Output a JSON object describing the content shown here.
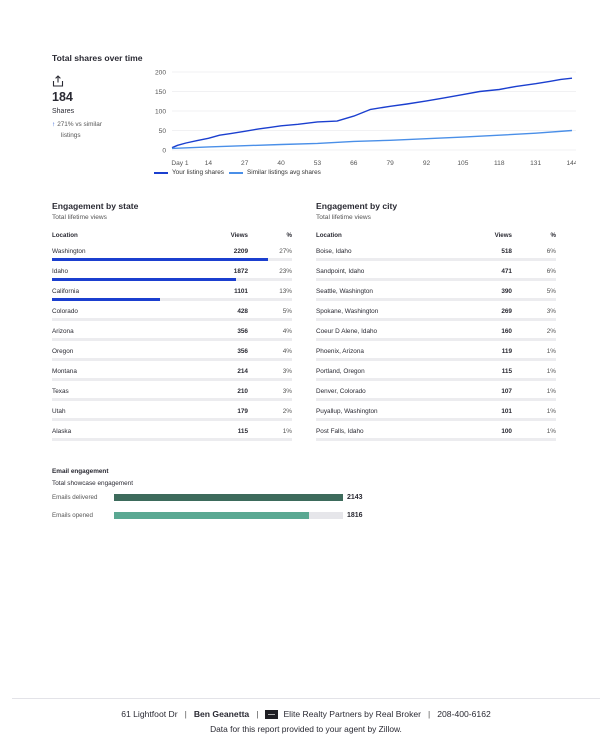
{
  "shares": {
    "title": "Total shares over time",
    "count": "184",
    "count_label": "Shares",
    "compare_line1": "271% vs similar",
    "compare_line2": "listings",
    "icon": "share-icon"
  },
  "chart_data": {
    "type": "line",
    "x_ticks": [
      "Day 1",
      "14",
      "27",
      "40",
      "53",
      "66",
      "79",
      "92",
      "105",
      "118",
      "131",
      "144"
    ],
    "y_ticks": [
      "0",
      "50",
      "100",
      "150",
      "200"
    ],
    "ylim": [
      0,
      200
    ],
    "xlim": [
      1,
      144
    ],
    "series": [
      {
        "name": "Your listing shares",
        "color": "#1b3fcf",
        "x": [
          1,
          3,
          6,
          10,
          14,
          18,
          22,
          27,
          32,
          36,
          40,
          46,
          53,
          60,
          66,
          72,
          79,
          85,
          92,
          98,
          105,
          111,
          118,
          124,
          131,
          136,
          140,
          144
        ],
        "values": [
          6,
          12,
          18,
          24,
          30,
          38,
          42,
          48,
          54,
          58,
          62,
          66,
          72,
          74,
          87,
          104,
          112,
          118,
          126,
          133,
          142,
          150,
          155,
          163,
          170,
          176,
          181,
          184
        ]
      },
      {
        "name": "Similar listings avg shares",
        "color": "#4a8fe8",
        "x": [
          1,
          14,
          27,
          40,
          53,
          66,
          79,
          92,
          105,
          118,
          131,
          144
        ],
        "values": [
          4,
          8,
          11,
          14,
          17,
          22,
          25,
          29,
          33,
          38,
          43,
          50
        ]
      }
    ]
  },
  "state": {
    "title": "Engagement by state",
    "subtitle": "Total lifetime views",
    "headers": {
      "location": "Location",
      "views": "Views",
      "pct": "%"
    },
    "rows": [
      {
        "location": "Washington",
        "views": "2209",
        "pct": "27%",
        "fill": 1.0
      },
      {
        "location": "Idaho",
        "views": "1872",
        "pct": "23%",
        "fill": 0.85
      },
      {
        "location": "California",
        "views": "1101",
        "pct": "13%",
        "fill": 0.5
      },
      {
        "location": "Colorado",
        "views": "428",
        "pct": "5%",
        "fill": 0
      },
      {
        "location": "Arizona",
        "views": "356",
        "pct": "4%",
        "fill": 0
      },
      {
        "location": "Oregon",
        "views": "356",
        "pct": "4%",
        "fill": 0
      },
      {
        "location": "Montana",
        "views": "214",
        "pct": "3%",
        "fill": 0
      },
      {
        "location": "Texas",
        "views": "210",
        "pct": "3%",
        "fill": 0
      },
      {
        "location": "Utah",
        "views": "179",
        "pct": "2%",
        "fill": 0
      },
      {
        "location": "Alaska",
        "views": "115",
        "pct": "1%",
        "fill": 0
      }
    ]
  },
  "city": {
    "title": "Engagement by city",
    "subtitle": "Total lifetime views",
    "headers": {
      "location": "Location",
      "views": "Views",
      "pct": "%"
    },
    "rows": [
      {
        "location": "Boise, Idaho",
        "views": "518",
        "pct": "6%"
      },
      {
        "location": "Sandpoint, Idaho",
        "views": "471",
        "pct": "6%"
      },
      {
        "location": "Seattle, Washington",
        "views": "390",
        "pct": "5%"
      },
      {
        "location": "Spokane, Washington",
        "views": "269",
        "pct": "3%"
      },
      {
        "location": "Coeur D Alene, Idaho",
        "views": "160",
        "pct": "2%"
      },
      {
        "location": "Phoenix, Arizona",
        "views": "119",
        "pct": "1%"
      },
      {
        "location": "Portland, Oregon",
        "views": "115",
        "pct": "1%"
      },
      {
        "location": "Denver, Colorado",
        "views": "107",
        "pct": "1%"
      },
      {
        "location": "Puyallup, Washington",
        "views": "101",
        "pct": "1%"
      },
      {
        "location": "Post Falls, Idaho",
        "views": "100",
        "pct": "1%"
      }
    ]
  },
  "email": {
    "title": "Email engagement",
    "subtitle": "Total showcase engagement",
    "delivered_label": "Emails delivered",
    "delivered_value": "2143",
    "delivered_fill": 1.0,
    "delivered_color": "#3d6b5c",
    "opened_label": "Emails opened",
    "opened_value": "1816",
    "opened_fill": 0.85,
    "opened_color": "#5aa892"
  },
  "footer": {
    "address": "61 Lightfoot Dr",
    "agent": "Ben Geanetta",
    "brokerage": "Elite Realty Partners by Real Broker",
    "phone": "208-400-6162",
    "disclaimer": "Data for this report provided to your agent by Zillow.",
    "separator": "|"
  }
}
